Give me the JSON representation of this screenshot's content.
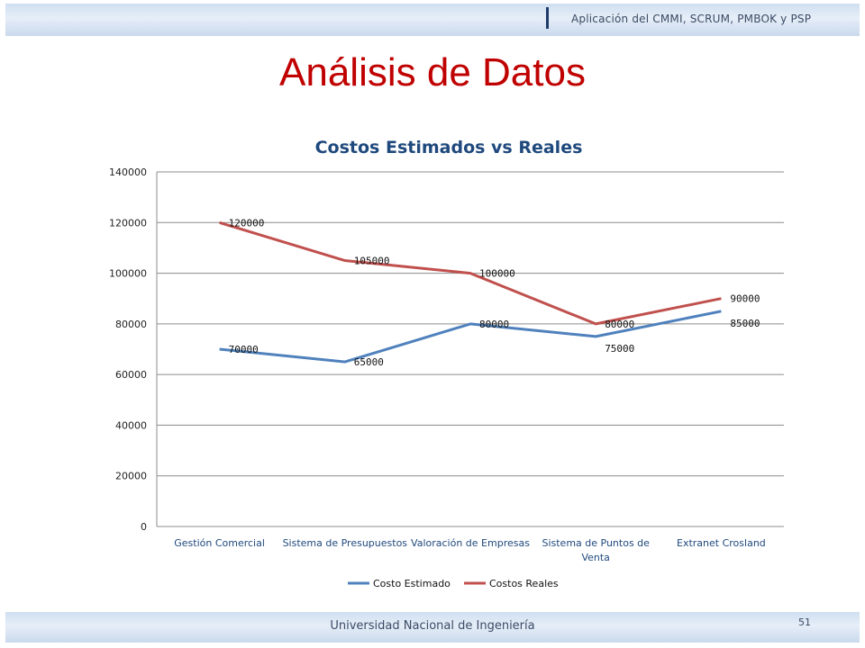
{
  "header": {
    "text": "Aplicación del CMMI, SCRUM, PMBOK y PSP"
  },
  "slide": {
    "title": "Análisis de Datos"
  },
  "footer": {
    "text": "Universidad Nacional de Ingeniería",
    "page_number": "51"
  },
  "colors": {
    "title": "#c00000",
    "estimado": "#4f81bd",
    "reales": "#c0504d",
    "axis_text": "#1f497d"
  },
  "chart_data": {
    "type": "line",
    "title": "Costos Estimados vs Reales",
    "xlabel": "",
    "ylabel": "",
    "categories": [
      [
        "Gestión Comercial"
      ],
      [
        "Sistema de Presupuestos"
      ],
      [
        "Valoración de Empresas"
      ],
      [
        "Sistema de Puntos de",
        "Venta"
      ],
      [
        "Extranet Crosland"
      ]
    ],
    "series": [
      {
        "name": "Costo Estimado",
        "color": "#4f81bd",
        "values": [
          70000,
          65000,
          80000,
          75000,
          85000
        ]
      },
      {
        "name": "Costos Reales",
        "color": "#c0504d",
        "values": [
          120000,
          105000,
          100000,
          80000,
          90000
        ]
      }
    ],
    "ylim": [
      0,
      140000
    ],
    "yticks": [
      0,
      20000,
      40000,
      60000,
      80000,
      100000,
      120000,
      140000
    ],
    "grid": true,
    "legend": "bottom"
  }
}
